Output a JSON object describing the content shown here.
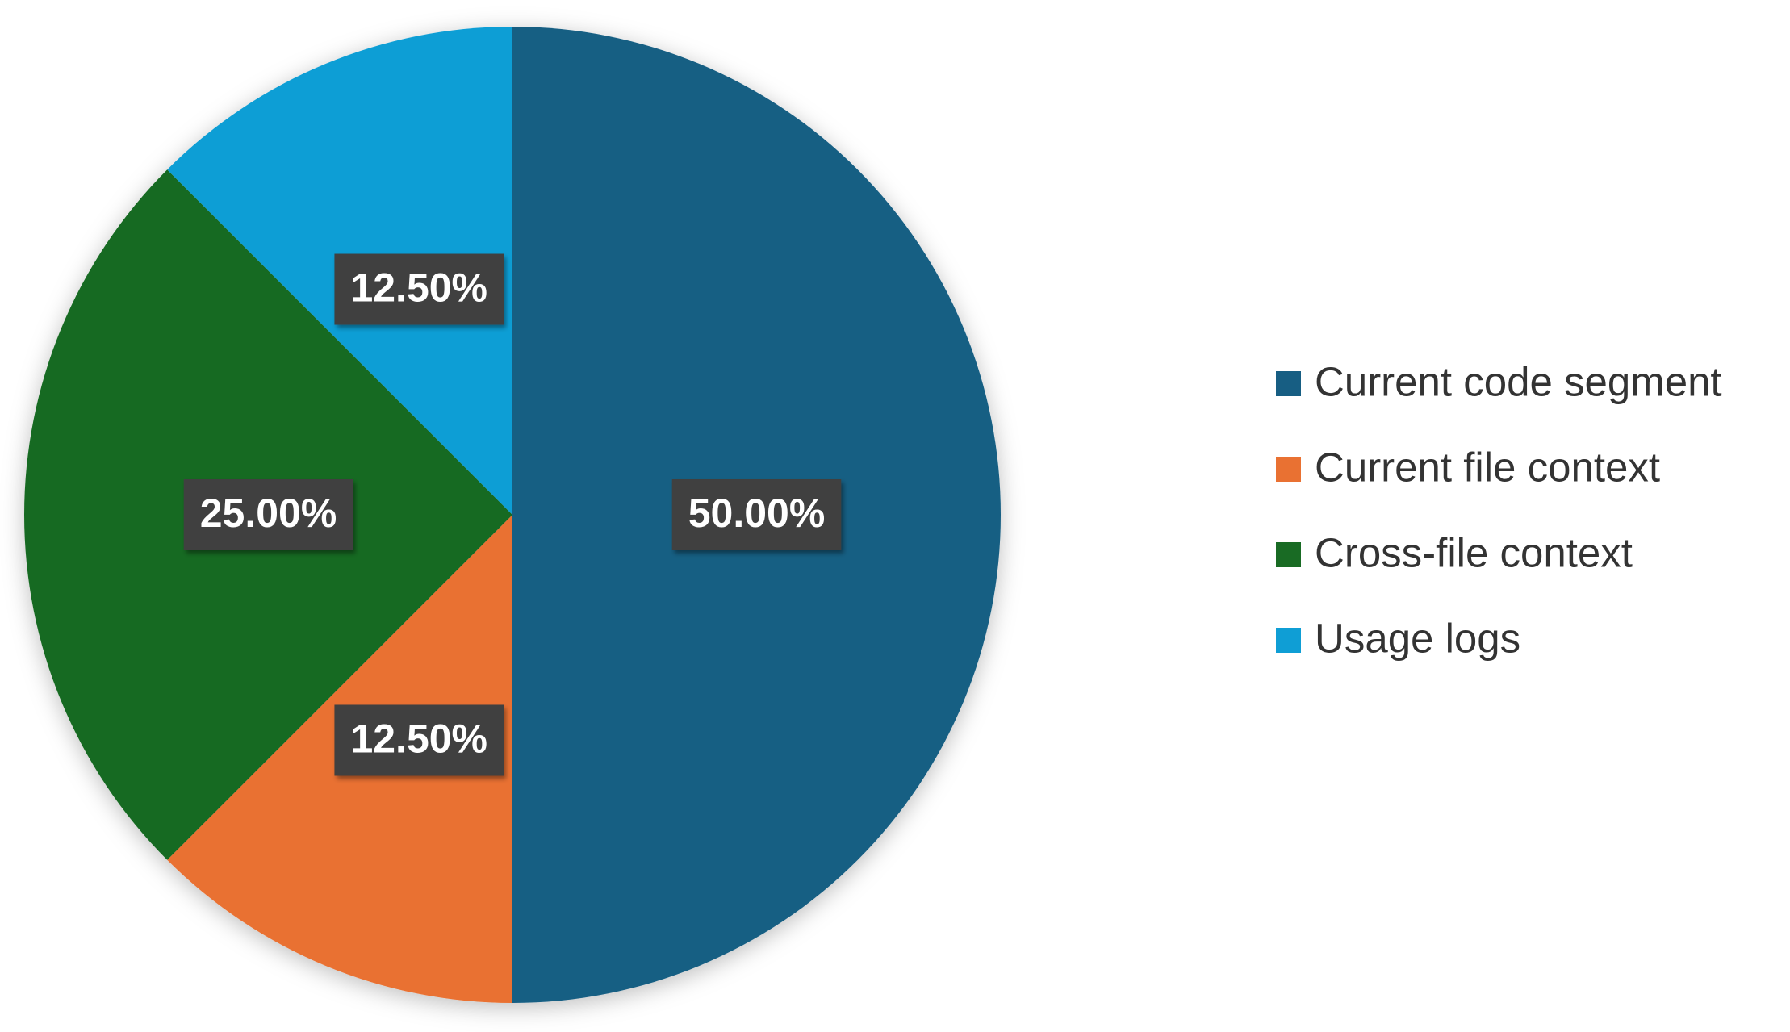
{
  "chart_data": {
    "type": "pie",
    "categories": [
      "Current code segment",
      "Current file context",
      "Cross-file context",
      "Usage logs"
    ],
    "values": [
      50,
      12.5,
      25,
      12.5
    ],
    "value_labels": [
      "50.00%",
      "12.50%",
      "25.00%",
      "12.50%"
    ],
    "colors": [
      "#175e83",
      "#e97132",
      "#196b24",
      "#0f9ed5"
    ],
    "legend": "right"
  }
}
